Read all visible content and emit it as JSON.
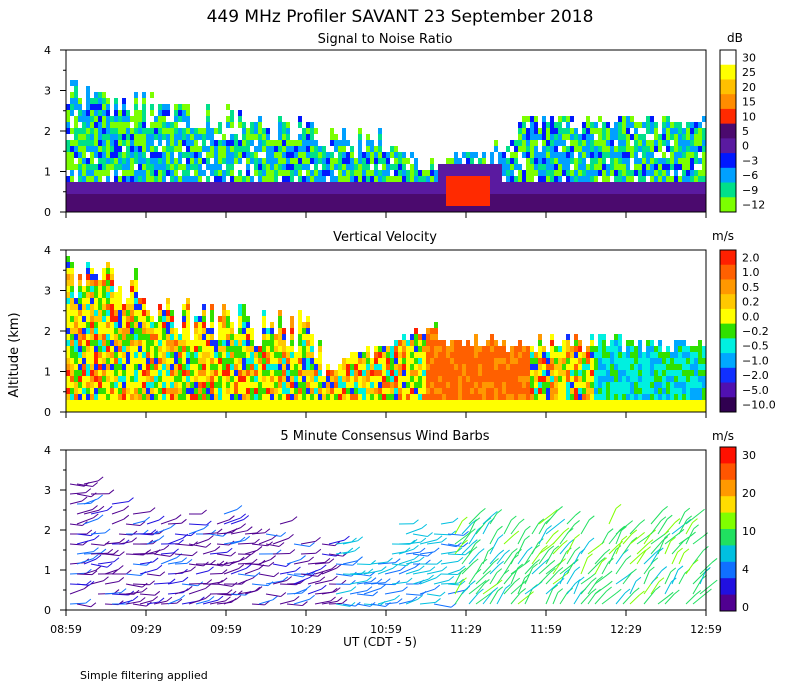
{
  "chart_data": {
    "type": "heatmap",
    "title": "449 MHz Profiler SAVANT 23 September 2018",
    "ylabel": "Altitude (km)",
    "xlabel": "UT   (CDT - 5)",
    "x_ticks": [
      "08:59",
      "09:29",
      "09:59",
      "10:29",
      "10:59",
      "11:29",
      "11:59",
      "12:29",
      "12:59"
    ],
    "note": "Simple filtering applied",
    "panels": [
      {
        "title": "Signal to Noise Ratio",
        "units": "dB",
        "ylim": [
          0,
          4
        ],
        "y_ticks": [
          "0",
          "1",
          "2",
          "3",
          "4"
        ],
        "colorbar": {
          "labels": [
            "30",
            "25",
            "20",
            "15",
            "10",
            "5",
            "0",
            "−3",
            "−6",
            "−9",
            "−12"
          ],
          "colors": [
            "#ffffff",
            "#ffff00",
            "#ffc000",
            "#ff8c00",
            "#ff2a00",
            "#4b0a6e",
            "#5a1aa0",
            "#0018ff",
            "#00a0ff",
            "#00e08a",
            "#7cff00"
          ]
        }
      },
      {
        "title": "Vertical Velocity",
        "units": "m/s",
        "ylim": [
          0,
          4
        ],
        "y_ticks": [
          "0",
          "1",
          "2",
          "3",
          "4"
        ],
        "colorbar": {
          "labels": [
            "2.0",
            "1.0",
            "0.5",
            "0.2",
            "0.0",
            "−0.2",
            "−0.5",
            "−1.0",
            "−2.0",
            "−5.0",
            "−10.0"
          ],
          "colors": [
            "#ff2000",
            "#ff6000",
            "#ff9800",
            "#ffc800",
            "#ffff00",
            "#30e000",
            "#00f0e0",
            "#00a8ff",
            "#1030ff",
            "#5010b0",
            "#300050"
          ]
        }
      },
      {
        "title": "5 Minute Consensus Wind Barbs",
        "units": "m/s",
        "ylim": [
          0,
          4
        ],
        "y_ticks": [
          "0",
          "1",
          "2",
          "3",
          "4"
        ],
        "colorbar": {
          "labels": [
            "30",
            "20",
            "10",
            "4",
            "0"
          ],
          "colors": [
            "#ff1000",
            "#ff5500",
            "#ff9900",
            "#ffdd00",
            "#80ff00",
            "#20e060",
            "#00c0e0",
            "#1070ff",
            "#2010e0",
            "#500090"
          ]
        }
      }
    ]
  }
}
